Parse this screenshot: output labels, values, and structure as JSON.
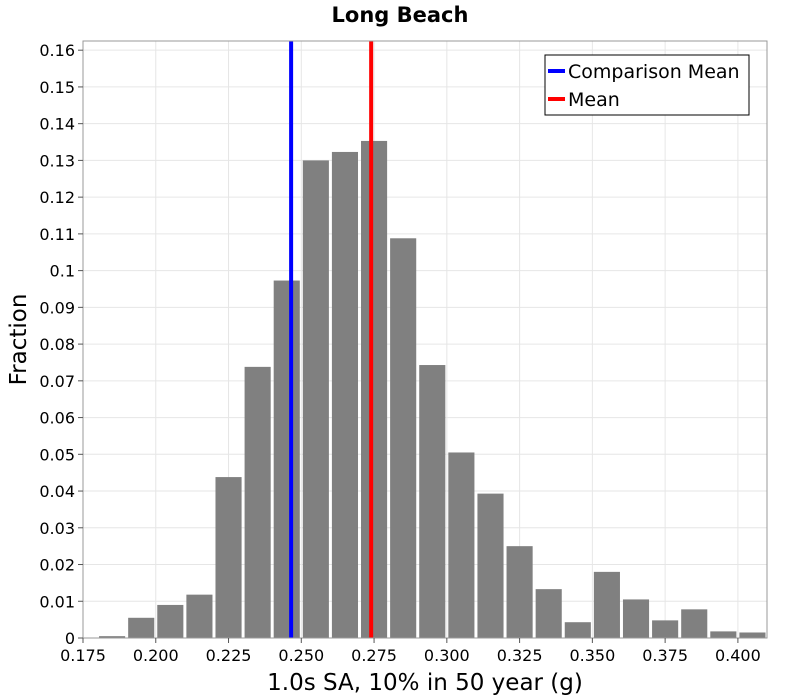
{
  "chart_data": {
    "type": "bar",
    "title": "Long Beach",
    "xlabel": "1.0s SA, 10% in 50 year (g)",
    "ylabel": "Fraction",
    "xlim": [
      0.175,
      0.41
    ],
    "ylim": [
      0,
      0.1625
    ],
    "xticks": [
      "0.175",
      "0.200",
      "0.225",
      "0.250",
      "0.275",
      "0.300",
      "0.325",
      "0.350",
      "0.375",
      "0.400"
    ],
    "yticks": [
      "0",
      "0.01",
      "0.02",
      "0.03",
      "0.04",
      "0.05",
      "0.06",
      "0.07",
      "0.08",
      "0.09",
      "0.1",
      "0.11",
      "0.12",
      "0.13",
      "0.14",
      "0.15",
      "0.16"
    ],
    "grid": true,
    "bar_color": "#808080",
    "bin_width": 0.01,
    "bins": [
      {
        "x": 0.185,
        "value": 0.0005
      },
      {
        "x": 0.195,
        "value": 0.0055
      },
      {
        "x": 0.205,
        "value": 0.009
      },
      {
        "x": 0.215,
        "value": 0.0118
      },
      {
        "x": 0.225,
        "value": 0.0438
      },
      {
        "x": 0.235,
        "value": 0.0738
      },
      {
        "x": 0.245,
        "value": 0.0973
      },
      {
        "x": 0.255,
        "value": 0.13
      },
      {
        "x": 0.265,
        "value": 0.1323
      },
      {
        "x": 0.275,
        "value": 0.1353
      },
      {
        "x": 0.285,
        "value": 0.1088
      },
      {
        "x": 0.295,
        "value": 0.0743
      },
      {
        "x": 0.305,
        "value": 0.0505
      },
      {
        "x": 0.315,
        "value": 0.0393
      },
      {
        "x": 0.325,
        "value": 0.025
      },
      {
        "x": 0.335,
        "value": 0.0133
      },
      {
        "x": 0.345,
        "value": 0.0043
      },
      {
        "x": 0.355,
        "value": 0.018
      },
      {
        "x": 0.365,
        "value": 0.0105
      },
      {
        "x": 0.375,
        "value": 0.0048
      },
      {
        "x": 0.385,
        "value": 0.0078
      },
      {
        "x": 0.395,
        "value": 0.0018
      },
      {
        "x": 0.405,
        "value": 0.0015
      }
    ],
    "reference_lines": [
      {
        "name": "Comparison Mean",
        "x": 0.2465,
        "color": "#0000ff"
      },
      {
        "name": "Mean",
        "x": 0.274,
        "color": "#ff0000"
      }
    ],
    "legend_position": "top-right"
  }
}
